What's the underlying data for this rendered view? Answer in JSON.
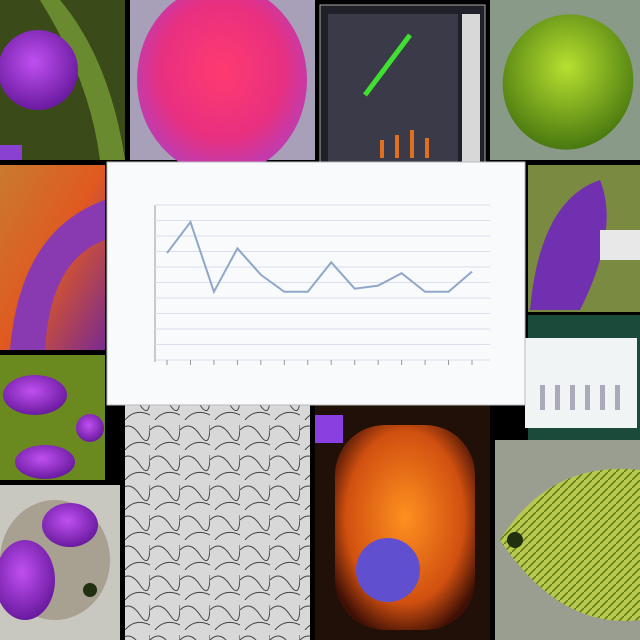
{
  "chart_data": {
    "type": "line",
    "color": "#8fa8c8",
    "values": [
      6.9,
      8.9,
      4.4,
      7.2,
      5.5,
      4.4,
      4.4,
      6.3,
      4.6,
      4.8,
      5.6,
      4.4,
      4.4,
      5.7
    ],
    "ylim": [
      0,
      10
    ],
    "yticks": [
      0,
      1,
      2,
      3,
      4,
      5,
      6,
      7,
      8,
      9,
      10
    ],
    "grid": true
  }
}
